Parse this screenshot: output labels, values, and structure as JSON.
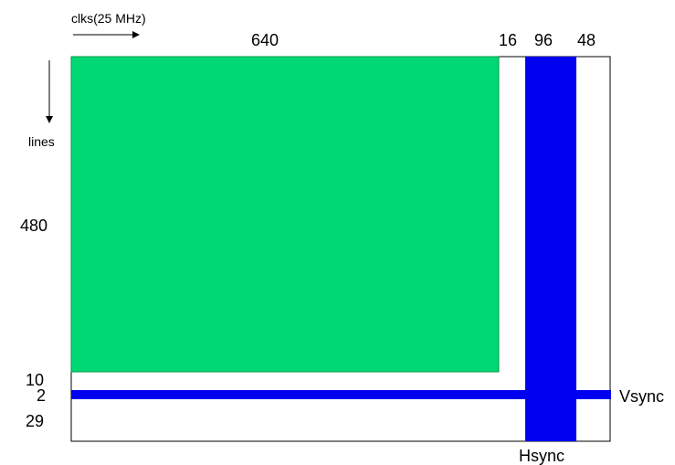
{
  "axes": {
    "horizontal_label": "clks(25 MHz)",
    "vertical_label": "lines"
  },
  "horizontal_timing": {
    "visible": "640",
    "front_porch": "16",
    "sync": "96",
    "back_porch": "48"
  },
  "vertical_timing": {
    "visible": "480",
    "front_porch": "10",
    "sync": "2",
    "back_porch": "29"
  },
  "sync_labels": {
    "vsync": "Vsync",
    "hsync": "Hsync"
  },
  "colors": {
    "visible_area": "#00d873",
    "sync": "#0000f0",
    "outline": "#000000"
  }
}
